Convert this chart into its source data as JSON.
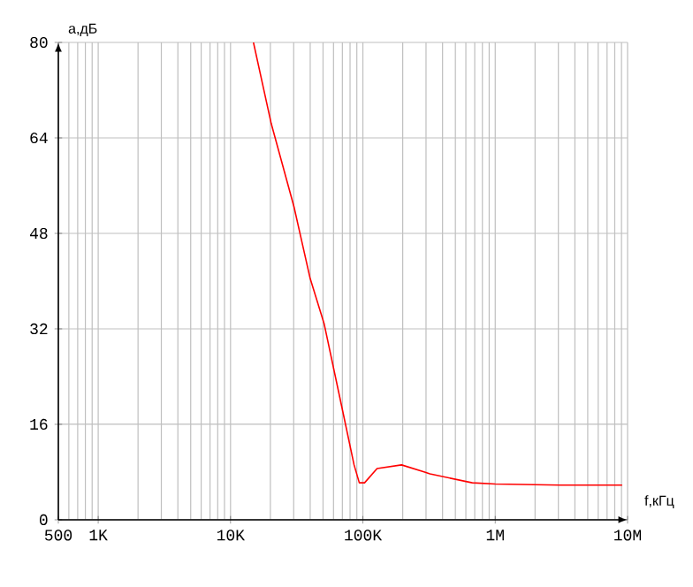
{
  "chart_data": {
    "type": "line",
    "xlabel": "f,кГц",
    "ylabel": "a,дБ",
    "log": "x",
    "grid": true,
    "marker": "none",
    "line_style": "solid",
    "xlim": [
      500,
      10000000
    ],
    "ylim": [
      0,
      80
    ],
    "xticks": [
      500,
      {
        "value": 1000,
        "label": "1K"
      },
      {
        "value": 10000,
        "label": "10K"
      },
      {
        "value": 100000,
        "label": "100K"
      },
      {
        "value": 1000000,
        "label": "1M"
      },
      {
        "value": 10000000,
        "label": "10M"
      }
    ],
    "yticks": [
      0,
      16,
      32,
      48,
      64,
      80
    ],
    "x": [
      14900,
      20300,
      30200,
      39800,
      50900,
      69200,
      85800,
      94000,
      103000,
      128000,
      196000,
      293000,
      321000,
      671000,
      1000000,
      3110000,
      9100000
    ],
    "series": [
      {
        "color": "#ff0000",
        "values": [
          80,
          66.4,
          52.4,
          40.6,
          32.9,
          19,
          9.2,
          6.2,
          6.2,
          8.6,
          9.2,
          8,
          7.7,
          6.2,
          6,
          5.8,
          5.8
        ]
      }
    ]
  }
}
